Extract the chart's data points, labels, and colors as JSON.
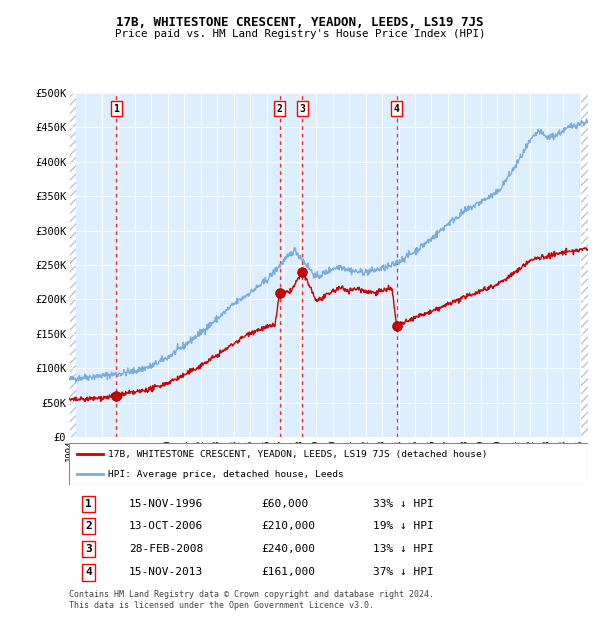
{
  "title1": "17B, WHITESTONE CRESCENT, YEADON, LEEDS, LS19 7JS",
  "title2": "Price paid vs. HM Land Registry's House Price Index (HPI)",
  "legend_line1": "17B, WHITESTONE CRESCENT, YEADON, LEEDS, LS19 7JS (detached house)",
  "legend_line2": "HPI: Average price, detached house, Leeds",
  "footnote1": "Contains HM Land Registry data © Crown copyright and database right 2024.",
  "footnote2": "This data is licensed under the Open Government Licence v3.0.",
  "sale_color": "#cc0000",
  "hpi_color": "#7aaddb",
  "background_color": "#ddeeff",
  "sales": [
    {
      "label": "1",
      "date_num": 1996.88,
      "price": 60000
    },
    {
      "label": "2",
      "date_num": 2006.79,
      "price": 210000
    },
    {
      "label": "3",
      "date_num": 2008.16,
      "price": 240000
    },
    {
      "label": "4",
      "date_num": 2013.88,
      "price": 161000
    }
  ],
  "table_rows": [
    [
      "1",
      "15-NOV-1996",
      "£60,000",
      "33% ↓ HPI"
    ],
    [
      "2",
      "13-OCT-2006",
      "£210,000",
      "19% ↓ HPI"
    ],
    [
      "3",
      "28-FEB-2008",
      "£240,000",
      "13% ↓ HPI"
    ],
    [
      "4",
      "15-NOV-2013",
      "£161,000",
      "37% ↓ HPI"
    ]
  ],
  "ylim": [
    0,
    500000
  ],
  "xlim": [
    1994.0,
    2025.5
  ],
  "yticks": [
    0,
    50000,
    100000,
    150000,
    200000,
    250000,
    300000,
    350000,
    400000,
    450000,
    500000
  ],
  "ytick_labels": [
    "£0",
    "£50K",
    "£100K",
    "£150K",
    "£200K",
    "£250K",
    "£300K",
    "£350K",
    "£400K",
    "£450K",
    "£500K"
  ]
}
